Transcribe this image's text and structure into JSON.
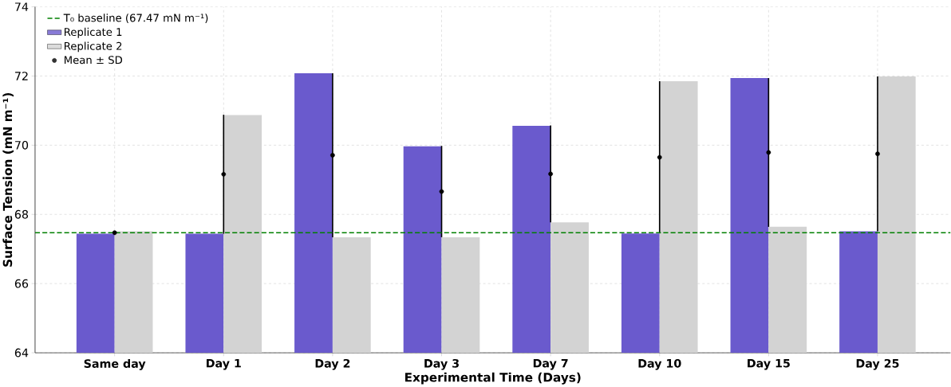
{
  "chart_data": {
    "type": "bar",
    "xlabel": "Experimental Time (Days)",
    "ylabel": "Surface Tension (mN m⁻¹)",
    "categories": [
      "Same day",
      "Day 1",
      "Day 2",
      "Day 3",
      "Day 7",
      "Day 10",
      "Day 15",
      "Day 25"
    ],
    "series": [
      {
        "name": "Replicate 1",
        "color": "#6a5acd",
        "values": [
          67.44,
          67.44,
          72.08,
          69.97,
          70.56,
          67.45,
          71.94,
          67.51
        ]
      },
      {
        "name": "Replicate 2",
        "color": "#d3d3d3",
        "values": [
          67.51,
          70.87,
          67.34,
          67.34,
          67.77,
          71.85,
          67.64,
          71.99
        ]
      },
      {
        "name": "Mean ± SD",
        "type": "scatter",
        "color": "#000000",
        "values": [
          67.47,
          69.16,
          69.71,
          68.66,
          69.17,
          69.65,
          69.79,
          69.75
        ],
        "errors": [
          null,
          1.72,
          2.37,
          1.32,
          1.4,
          2.2,
          2.15,
          2.24
        ]
      }
    ],
    "ref_lines": [
      {
        "axis": "y",
        "value": 67.47,
        "label": "T₀ baseline (67.47 mN m⁻¹)",
        "color": "#008000",
        "line_style": "dashed"
      }
    ],
    "ylim": [
      64,
      74
    ],
    "yticks": [
      64,
      66,
      68,
      70,
      72,
      74
    ],
    "grid": true,
    "legend": "top left"
  }
}
